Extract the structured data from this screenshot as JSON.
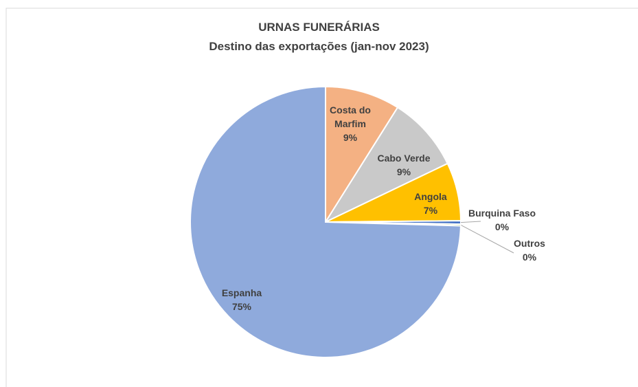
{
  "chart_data": {
    "type": "pie",
    "title": "URNAS FUNERÁRIAS",
    "subtitle": "Destino das exportações (jan-nov 2023)",
    "categories": [
      "Costa do Marfim",
      "Cabo Verde",
      "Angola",
      "Burquina Faso",
      "Outros",
      "Espanha"
    ],
    "values": [
      9,
      9,
      7,
      0.4,
      0.2,
      75
    ],
    "value_labels": [
      "9%",
      "9%",
      "7%",
      "0%",
      "0%",
      "75%"
    ],
    "colors": [
      "#F4B183",
      "#C9C9C9",
      "#FFC000",
      "#4472C4",
      "#70AD47",
      "#8FAADC"
    ]
  }
}
